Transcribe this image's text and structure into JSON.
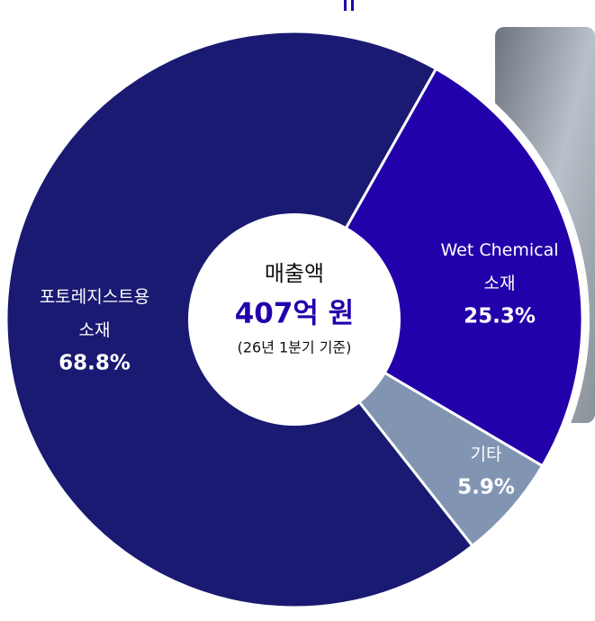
{
  "chart_data": {
    "type": "donut",
    "center_title": "매출액",
    "center_value": "407억 원",
    "center_note": "(26년 1분기 기준)",
    "categories": [
      "포토레지스트용\n소재",
      "Wet Chemical\n소재",
      "기타"
    ],
    "values": [
      68.8,
      25.3,
      5.9
    ],
    "value_labels": [
      "68.8%",
      "25.3%",
      "5.9%"
    ],
    "colors": [
      "#1a1a72",
      "#2200aa",
      "#8195b3"
    ]
  }
}
